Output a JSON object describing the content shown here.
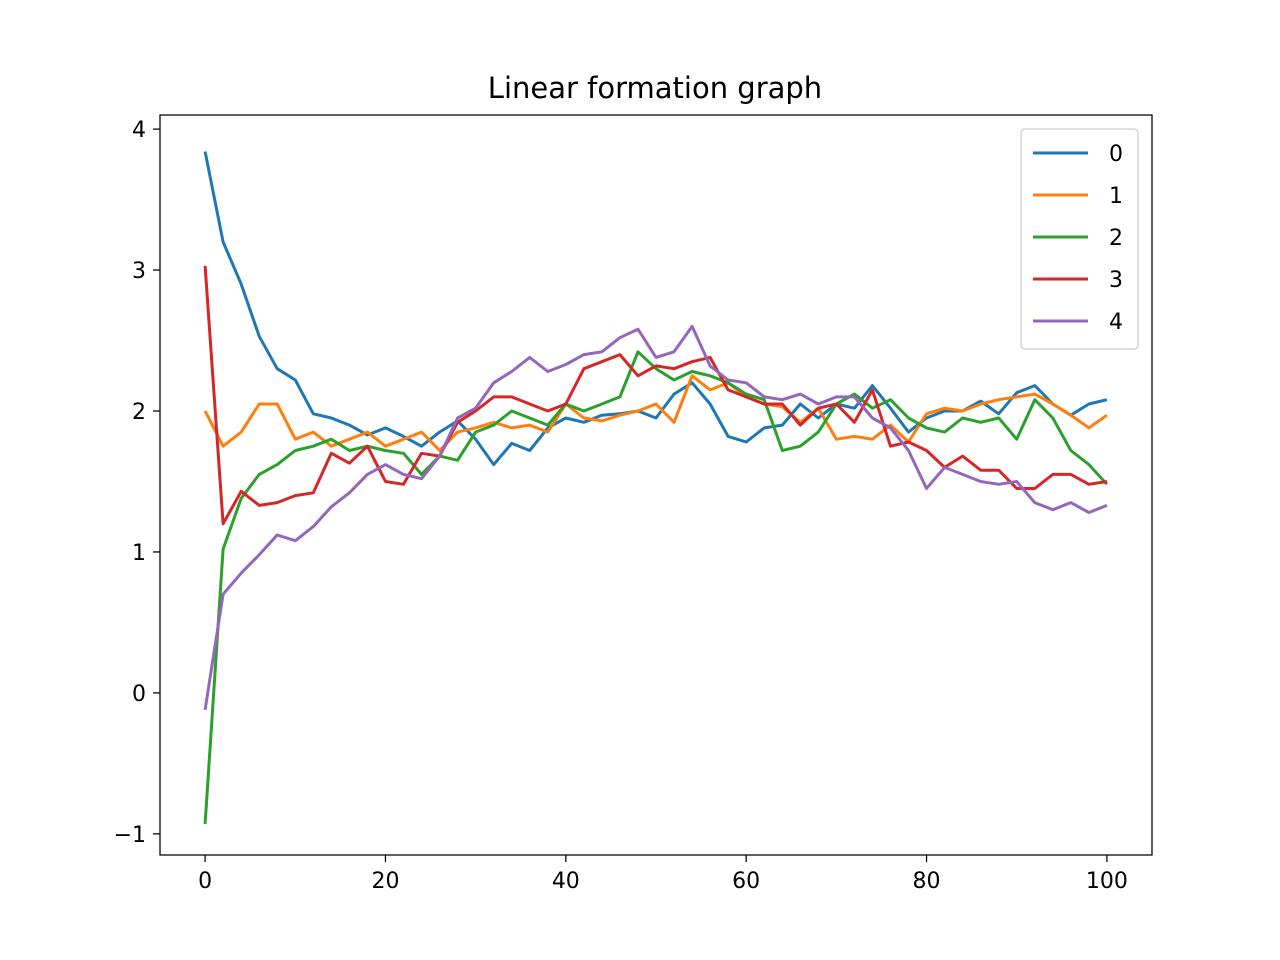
{
  "chart_data": {
    "type": "line",
    "title": "Linear formation graph",
    "xlabel": "",
    "ylabel": "",
    "xlim": [
      -5,
      105
    ],
    "ylim": [
      -1.15,
      4.1
    ],
    "xticks": [
      0,
      20,
      40,
      60,
      80,
      100
    ],
    "yticks": [
      -1,
      0,
      1,
      2,
      3,
      4
    ],
    "xtick_labels": [
      "0",
      "20",
      "40",
      "60",
      "80",
      "100"
    ],
    "ytick_labels": [
      "−1",
      "0",
      "1",
      "2",
      "3",
      "4"
    ],
    "grid": false,
    "legend_position": "top-right",
    "x": [
      0,
      2,
      4,
      6,
      8,
      10,
      12,
      14,
      16,
      18,
      20,
      22,
      24,
      26,
      28,
      30,
      32,
      34,
      36,
      38,
      40,
      42,
      44,
      46,
      48,
      50,
      52,
      54,
      56,
      58,
      60,
      62,
      64,
      66,
      68,
      70,
      72,
      74,
      76,
      78,
      80,
      82,
      84,
      86,
      88,
      90,
      92,
      94,
      96,
      98,
      100
    ],
    "series": [
      {
        "name": "0",
        "color": "#1f77b4",
        "values": [
          3.84,
          3.2,
          2.9,
          2.53,
          2.3,
          2.22,
          1.98,
          1.95,
          1.9,
          1.83,
          1.88,
          1.82,
          1.75,
          1.85,
          1.93,
          1.8,
          1.62,
          1.77,
          1.72,
          1.88,
          1.95,
          1.92,
          1.97,
          1.98,
          2.0,
          1.95,
          2.12,
          2.2,
          2.05,
          1.82,
          1.78,
          1.88,
          1.9,
          2.05,
          1.95,
          2.05,
          2.02,
          2.18,
          2.02,
          1.85,
          1.95,
          2.0,
          2.0,
          2.07,
          1.98,
          2.13,
          2.18,
          2.05,
          1.97,
          2.05,
          2.08
        ]
      },
      {
        "name": "1",
        "color": "#ff7f0e",
        "values": [
          2.0,
          1.75,
          1.85,
          2.05,
          2.05,
          1.8,
          1.85,
          1.75,
          1.8,
          1.85,
          1.75,
          1.8,
          1.85,
          1.72,
          1.85,
          1.88,
          1.92,
          1.88,
          1.9,
          1.85,
          2.05,
          1.95,
          1.93,
          1.97,
          2.0,
          2.05,
          1.92,
          2.25,
          2.15,
          2.2,
          2.1,
          2.05,
          2.03,
          1.92,
          2.02,
          1.8,
          1.82,
          1.8,
          1.9,
          1.78,
          1.98,
          2.02,
          2.0,
          2.05,
          2.08,
          2.1,
          2.12,
          2.05,
          1.97,
          1.88,
          1.97
        ]
      },
      {
        "name": "2",
        "color": "#2ca02c",
        "values": [
          -0.93,
          1.02,
          1.38,
          1.55,
          1.62,
          1.72,
          1.75,
          1.8,
          1.72,
          1.75,
          1.72,
          1.7,
          1.55,
          1.68,
          1.65,
          1.85,
          1.9,
          2.0,
          1.95,
          1.9,
          2.05,
          2.0,
          2.05,
          2.1,
          2.42,
          2.3,
          2.22,
          2.28,
          2.25,
          2.2,
          2.12,
          2.08,
          1.72,
          1.75,
          1.85,
          2.05,
          2.12,
          2.02,
          2.08,
          1.95,
          1.88,
          1.85,
          1.95,
          1.92,
          1.95,
          1.8,
          2.08,
          1.95,
          1.72,
          1.62,
          1.48
        ]
      },
      {
        "name": "3",
        "color": "#d62728",
        "values": [
          3.03,
          1.2,
          1.43,
          1.33,
          1.35,
          1.4,
          1.42,
          1.7,
          1.63,
          1.75,
          1.5,
          1.48,
          1.7,
          1.68,
          1.92,
          2.0,
          2.1,
          2.1,
          2.05,
          2.0,
          2.05,
          2.3,
          2.35,
          2.4,
          2.25,
          2.32,
          2.3,
          2.35,
          2.38,
          2.15,
          2.1,
          2.05,
          2.05,
          1.9,
          2.02,
          2.05,
          1.92,
          2.15,
          1.75,
          1.78,
          1.72,
          1.6,
          1.68,
          1.58,
          1.58,
          1.45,
          1.45,
          1.55,
          1.55,
          1.48,
          1.5
        ]
      },
      {
        "name": "4",
        "color": "#9467bd",
        "values": [
          -0.12,
          0.7,
          0.85,
          0.98,
          1.12,
          1.08,
          1.18,
          1.32,
          1.42,
          1.55,
          1.62,
          1.55,
          1.52,
          1.68,
          1.95,
          2.02,
          2.2,
          2.28,
          2.38,
          2.28,
          2.33,
          2.4,
          2.42,
          2.52,
          2.58,
          2.38,
          2.42,
          2.6,
          2.32,
          2.22,
          2.2,
          2.1,
          2.08,
          2.12,
          2.05,
          2.1,
          2.1,
          1.95,
          1.88,
          1.72,
          1.45,
          1.6,
          1.55,
          1.5,
          1.48,
          1.5,
          1.35,
          1.3,
          1.35,
          1.28,
          1.33
        ]
      }
    ]
  }
}
